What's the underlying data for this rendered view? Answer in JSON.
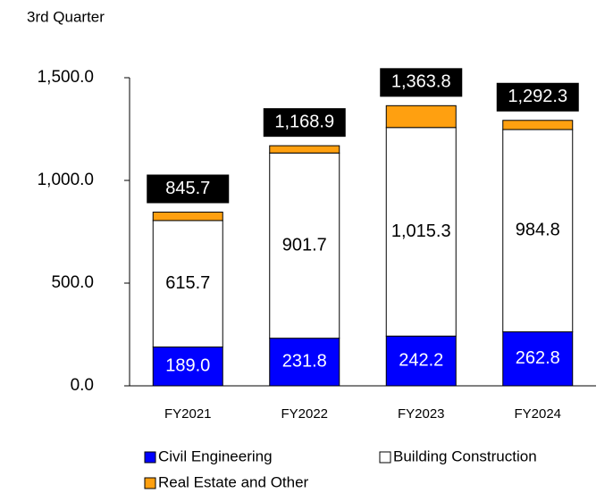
{
  "chart_data": {
    "type": "stacked_bar",
    "title": "3rd Quarter",
    "categories": [
      "FY2021",
      "FY2022",
      "FY2023",
      "FY2024"
    ],
    "series": [
      {
        "name": "Civil Engineering",
        "color": "#0000ff",
        "values": [
          189.0,
          231.8,
          242.2,
          262.8
        ],
        "value_labels": [
          "189.0",
          "231.8",
          "242.2",
          "262.8"
        ]
      },
      {
        "name": "Building Construction",
        "color": "#ffffff",
        "values": [
          615.7,
          901.7,
          1015.3,
          984.8
        ],
        "value_labels": [
          "615.7",
          "901.7",
          "1,015.3",
          "984.8"
        ]
      },
      {
        "name": "Real Estate and Other",
        "color": "#ffa010",
        "values": [
          41.0,
          35.4,
          106.3,
          44.7
        ]
      }
    ],
    "totals": [
      845.7,
      1168.9,
      1363.8,
      1292.3
    ],
    "total_labels": [
      "845.7",
      "1,168.9",
      "1,363.8",
      "1,292.3"
    ],
    "ylim": [
      0,
      1500
    ],
    "yticks": [
      {
        "value": 0,
        "label": "0.0"
      },
      {
        "value": 500,
        "label": "500.0"
      },
      {
        "value": 1000,
        "label": "1,000.0"
      },
      {
        "value": 1500,
        "label": "1,500.0"
      }
    ]
  }
}
